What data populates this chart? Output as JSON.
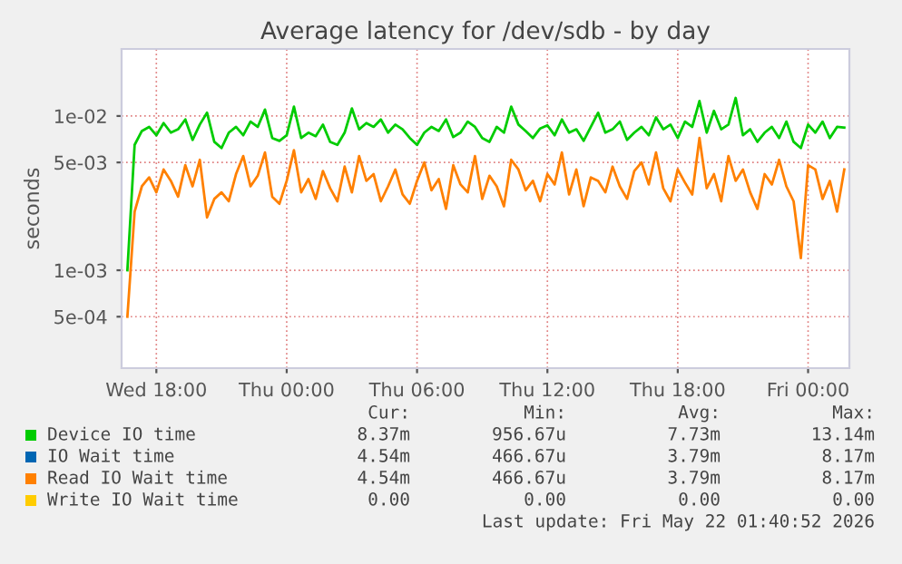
{
  "chart_data": {
    "type": "line",
    "title": "Average latency for /dev/sdb - by day",
    "ylabel": "seconds",
    "log": "y",
    "grid": true,
    "legend": "bottom",
    "xlim": [
      "2026-05-20T16:24",
      "2026-05-22T01:54"
    ],
    "ylim": [
      0.000232,
      0.0272
    ],
    "xticks": [
      {
        "value": "2026-05-20T18:00",
        "label": "Wed 18:00"
      },
      {
        "value": "2026-05-21T00:00",
        "label": "Thu 00:00"
      },
      {
        "value": "2026-05-21T06:00",
        "label": "Thu 06:00"
      },
      {
        "value": "2026-05-21T12:00",
        "label": "Thu 12:00"
      },
      {
        "value": "2026-05-21T18:00",
        "label": "Thu 18:00"
      },
      {
        "value": "2026-05-22T00:00",
        "label": "Fri 00:00"
      }
    ],
    "yticks": [
      {
        "value": 0.0005,
        "label": "5e-04"
      },
      {
        "value": 0.001,
        "label": "1e-03"
      },
      {
        "value": 0.005,
        "label": "5e-03"
      },
      {
        "value": 0.01,
        "label": "1e-02"
      }
    ],
    "x": [
      "2026-05-20T16:40",
      "2026-05-20T17:00",
      "2026-05-20T17:20",
      "2026-05-20T17:40",
      "2026-05-20T18:00",
      "2026-05-20T18:20",
      "2026-05-20T18:40",
      "2026-05-20T19:00",
      "2026-05-20T19:20",
      "2026-05-20T19:40",
      "2026-05-20T20:00",
      "2026-05-20T20:20",
      "2026-05-20T20:40",
      "2026-05-20T21:00",
      "2026-05-20T21:20",
      "2026-05-20T21:40",
      "2026-05-20T22:00",
      "2026-05-20T22:20",
      "2026-05-20T22:40",
      "2026-05-20T23:00",
      "2026-05-20T23:20",
      "2026-05-20T23:40",
      "2026-05-21T00:00",
      "2026-05-21T00:20",
      "2026-05-21T00:40",
      "2026-05-21T01:00",
      "2026-05-21T01:20",
      "2026-05-21T01:40",
      "2026-05-21T02:00",
      "2026-05-21T02:20",
      "2026-05-21T02:40",
      "2026-05-21T03:00",
      "2026-05-21T03:20",
      "2026-05-21T03:40",
      "2026-05-21T04:00",
      "2026-05-21T04:20",
      "2026-05-21T04:40",
      "2026-05-21T05:00",
      "2026-05-21T05:20",
      "2026-05-21T05:40",
      "2026-05-21T06:00",
      "2026-05-21T06:20",
      "2026-05-21T06:40",
      "2026-05-21T07:00",
      "2026-05-21T07:20",
      "2026-05-21T07:40",
      "2026-05-21T08:00",
      "2026-05-21T08:20",
      "2026-05-21T08:40",
      "2026-05-21T09:00",
      "2026-05-21T09:20",
      "2026-05-21T09:40",
      "2026-05-21T10:00",
      "2026-05-21T10:20",
      "2026-05-21T10:40",
      "2026-05-21T11:00",
      "2026-05-21T11:20",
      "2026-05-21T11:40",
      "2026-05-21T12:00",
      "2026-05-21T12:20",
      "2026-05-21T12:40",
      "2026-05-21T13:00",
      "2026-05-21T13:20",
      "2026-05-21T13:40",
      "2026-05-21T14:00",
      "2026-05-21T14:20",
      "2026-05-21T14:40",
      "2026-05-21T15:00",
      "2026-05-21T15:20",
      "2026-05-21T15:40",
      "2026-05-21T16:00",
      "2026-05-21T16:20",
      "2026-05-21T16:40",
      "2026-05-21T17:00",
      "2026-05-21T17:20",
      "2026-05-21T17:40",
      "2026-05-21T18:00",
      "2026-05-21T18:20",
      "2026-05-21T18:40",
      "2026-05-21T19:00",
      "2026-05-21T19:20",
      "2026-05-21T19:40",
      "2026-05-21T20:00",
      "2026-05-21T20:20",
      "2026-05-21T20:40",
      "2026-05-21T21:00",
      "2026-05-21T21:20",
      "2026-05-21T21:40",
      "2026-05-21T22:00",
      "2026-05-21T22:20",
      "2026-05-21T22:40",
      "2026-05-21T23:00",
      "2026-05-21T23:20",
      "2026-05-21T23:40",
      "2026-05-22T00:00",
      "2026-05-22T00:20",
      "2026-05-22T00:40",
      "2026-05-22T01:00",
      "2026-05-22T01:20",
      "2026-05-22T01:40"
    ],
    "series": [
      {
        "name": "Device IO time",
        "color": "#00cc00",
        "values": [
          0.001,
          0.0065,
          0.008,
          0.0085,
          0.0075,
          0.009,
          0.0078,
          0.0082,
          0.0095,
          0.007,
          0.0088,
          0.0105,
          0.0068,
          0.0062,
          0.0078,
          0.0085,
          0.0075,
          0.0092,
          0.0085,
          0.011,
          0.0072,
          0.0069,
          0.0075,
          0.0115,
          0.0072,
          0.0078,
          0.0074,
          0.0088,
          0.0068,
          0.0065,
          0.0078,
          0.0112,
          0.0082,
          0.009,
          0.0085,
          0.0095,
          0.0078,
          0.0088,
          0.0082,
          0.0072,
          0.0065,
          0.0078,
          0.0085,
          0.008,
          0.0095,
          0.0073,
          0.0078,
          0.0092,
          0.0085,
          0.0072,
          0.0068,
          0.0085,
          0.0078,
          0.0115,
          0.0088,
          0.008,
          0.0072,
          0.0083,
          0.0087,
          0.0075,
          0.0095,
          0.0078,
          0.0082,
          0.0069,
          0.0085,
          0.0105,
          0.0078,
          0.0082,
          0.0092,
          0.007,
          0.0078,
          0.0085,
          0.0075,
          0.0098,
          0.0082,
          0.0088,
          0.0072,
          0.0092,
          0.0085,
          0.0125,
          0.0078,
          0.0108,
          0.0082,
          0.0088,
          0.0131,
          0.0075,
          0.0082,
          0.0068,
          0.0078,
          0.0085,
          0.0072,
          0.0092,
          0.0068,
          0.0062,
          0.0088,
          0.0078,
          0.0092,
          0.0072,
          0.0085,
          0.0084
        ]
      },
      {
        "name": "IO Wait time",
        "color": "#0066b3",
        "values": [
          null,
          null,
          null,
          null,
          null,
          null,
          null,
          null,
          null,
          null,
          null,
          null,
          null,
          null,
          null,
          null,
          null,
          null,
          null,
          null,
          null,
          null,
          null,
          null,
          null,
          null,
          null,
          null,
          null,
          null,
          null,
          null,
          null,
          null,
          null,
          null,
          null,
          null,
          null,
          null,
          null,
          null,
          null,
          null,
          null,
          null,
          null,
          null,
          null,
          null,
          null,
          null,
          null,
          null,
          null,
          null,
          null,
          null,
          null,
          null,
          null,
          null,
          null,
          null,
          null,
          null,
          null,
          null,
          null,
          null,
          null,
          null,
          null,
          null,
          null,
          null,
          null,
          null,
          null,
          null,
          null,
          null,
          null,
          null,
          null,
          null,
          null,
          null,
          null,
          null,
          null,
          null,
          null,
          null,
          null,
          null,
          null,
          null,
          null,
          null
        ]
      },
      {
        "name": "Read IO Wait time",
        "color": "#ff8000",
        "values": [
          0.0005,
          0.0024,
          0.0035,
          0.004,
          0.0032,
          0.0045,
          0.0038,
          0.003,
          0.0048,
          0.0035,
          0.0052,
          0.0022,
          0.0029,
          0.0032,
          0.0028,
          0.0042,
          0.0055,
          0.0035,
          0.0041,
          0.0058,
          0.003,
          0.0027,
          0.0038,
          0.006,
          0.0032,
          0.0039,
          0.0029,
          0.0044,
          0.0034,
          0.0028,
          0.0047,
          0.0032,
          0.0055,
          0.0038,
          0.0042,
          0.0028,
          0.0035,
          0.0045,
          0.0031,
          0.0027,
          0.0038,
          0.005,
          0.0033,
          0.0039,
          0.0025,
          0.0048,
          0.0036,
          0.0032,
          0.0055,
          0.0029,
          0.0041,
          0.0035,
          0.0026,
          0.0052,
          0.0045,
          0.0033,
          0.0038,
          0.0028,
          0.0042,
          0.0036,
          0.0058,
          0.0031,
          0.0045,
          0.0026,
          0.004,
          0.0038,
          0.0032,
          0.0047,
          0.0035,
          0.0029,
          0.0044,
          0.005,
          0.0036,
          0.0058,
          0.0034,
          0.0028,
          0.0045,
          0.0037,
          0.0031,
          0.0072,
          0.0034,
          0.0042,
          0.0028,
          0.0055,
          0.0038,
          0.0045,
          0.0032,
          0.0025,
          0.0042,
          0.0036,
          0.0052,
          0.0035,
          0.0028,
          0.0012,
          0.0048,
          0.0045,
          0.0029,
          0.0038,
          0.0024,
          0.0045
        ]
      },
      {
        "name": "Write IO Wait time",
        "color": "#ffcc00",
        "values": [
          null,
          null,
          null,
          null,
          null,
          null,
          null,
          null,
          null,
          null,
          null,
          null,
          null,
          null,
          null,
          null,
          null,
          null,
          null,
          null,
          null,
          null,
          null,
          null,
          null,
          null,
          null,
          null,
          null,
          null,
          null,
          null,
          null,
          null,
          null,
          null,
          null,
          null,
          null,
          null,
          null,
          null,
          null,
          null,
          null,
          null,
          null,
          null,
          null,
          null,
          null,
          null,
          null,
          null,
          null,
          null,
          null,
          null,
          null,
          null,
          null,
          null,
          null,
          null,
          null,
          null,
          null,
          null,
          null,
          null,
          null,
          null,
          null,
          null,
          null,
          null,
          null,
          null,
          null,
          null,
          null,
          null,
          null,
          null,
          null,
          null,
          null,
          null,
          null,
          null,
          null,
          null,
          null,
          null,
          null,
          null,
          null,
          null,
          null,
          null
        ]
      }
    ],
    "annotations": [
      "Cur:",
      "Min:",
      "Avg:",
      "Max:",
      "8.37m",
      "956.67u",
      "7.73m",
      "13.14m",
      "4.54m",
      "466.67u",
      "3.79m",
      "8.17m",
      "4.54m",
      "466.67u",
      "3.79m",
      "8.17m",
      "0.00",
      "0.00",
      "0.00",
      "0.00",
      "Last update: Fri May 22 01:40:52 2026"
    ]
  }
}
